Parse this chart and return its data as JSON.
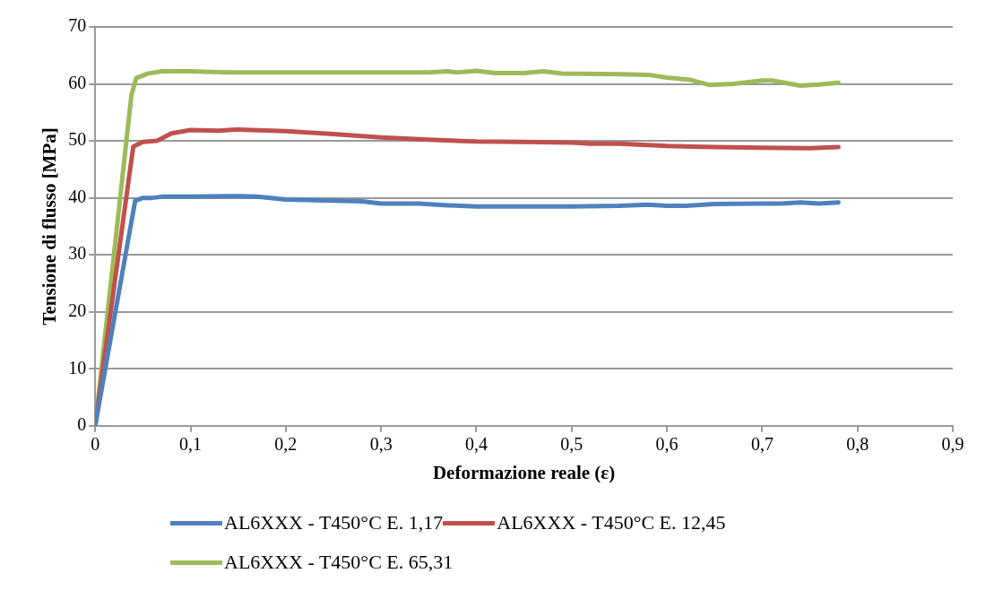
{
  "chart_data": {
    "type": "line",
    "xlabel": "Deformazione reale (ε)",
    "ylabel": "Tensione di flusso [MPa]",
    "xlim": [
      0,
      0.9
    ],
    "xticks": [
      0,
      {
        "value": 0.1,
        "label": "0,1"
      },
      {
        "value": 0.2,
        "label": "0,2"
      },
      {
        "value": 0.3,
        "label": "0,3"
      },
      {
        "value": 0.4,
        "label": "0,4"
      },
      {
        "value": 0.5,
        "label": "0,5"
      },
      {
        "value": 0.6,
        "label": "0,6"
      },
      {
        "value": 0.7,
        "label": "0,7"
      },
      {
        "value": 0.8,
        "label": "0,8"
      },
      {
        "value": 0.9,
        "label": "0,9"
      }
    ],
    "ylim": [
      0,
      70
    ],
    "yticks": [
      0,
      10,
      20,
      30,
      40,
      50,
      60,
      70
    ],
    "grid": "y",
    "legend": "bottom",
    "marker": "none",
    "line_style": "solid",
    "series": [
      {
        "name": "AL6XXX - T450°C E. 1,17",
        "color": "#4f81bd",
        "x": [
          0,
          0.035,
          0.042,
          0.05,
          0.06,
          0.07,
          0.1,
          0.15,
          0.17,
          0.2,
          0.25,
          0.28,
          0.3,
          0.34,
          0.37,
          0.4,
          0.5,
          0.55,
          0.58,
          0.6,
          0.62,
          0.65,
          0.7,
          0.72,
          0.74,
          0.76,
          0.78
        ],
        "values": [
          0,
          33,
          39.5,
          40,
          40,
          40.2,
          40.2,
          40.3,
          40.2,
          39.7,
          39.5,
          39.4,
          39,
          39,
          38.7,
          38.5,
          38.5,
          38.6,
          38.8,
          38.6,
          38.6,
          38.9,
          39,
          39,
          39.2,
          39,
          39.2
        ]
      },
      {
        "name": "AL6XXX - T450°C E. 12,45",
        "color": "#c0504d",
        "x": [
          0,
          0.035,
          0.04,
          0.05,
          0.065,
          0.08,
          0.1,
          0.13,
          0.15,
          0.2,
          0.25,
          0.3,
          0.35,
          0.4,
          0.45,
          0.5,
          0.52,
          0.55,
          0.6,
          0.65,
          0.7,
          0.75,
          0.78
        ],
        "values": [
          0,
          43,
          49,
          49.8,
          50,
          51.3,
          51.9,
          51.8,
          52,
          51.7,
          51.2,
          50.6,
          50.2,
          49.9,
          49.8,
          49.7,
          49.5,
          49.5,
          49.1,
          48.9,
          48.8,
          48.7,
          48.9
        ]
      },
      {
        "name": "AL6XXX - T450°C E. 65,31",
        "color": "#9bbb59",
        "x": [
          0,
          0.038,
          0.043,
          0.055,
          0.07,
          0.1,
          0.14,
          0.2,
          0.3,
          0.35,
          0.37,
          0.38,
          0.4,
          0.42,
          0.45,
          0.47,
          0.49,
          0.55,
          0.58,
          0.6,
          0.625,
          0.645,
          0.67,
          0.7,
          0.71,
          0.74,
          0.76,
          0.78
        ],
        "values": [
          0,
          58,
          61,
          61.8,
          62.2,
          62.2,
          62,
          62,
          62,
          62,
          62.2,
          62,
          62.3,
          61.9,
          61.9,
          62.2,
          61.8,
          61.7,
          61.6,
          61.1,
          60.7,
          59.8,
          60,
          60.6,
          60.6,
          59.7,
          59.9,
          60.2
        ]
      }
    ]
  }
}
